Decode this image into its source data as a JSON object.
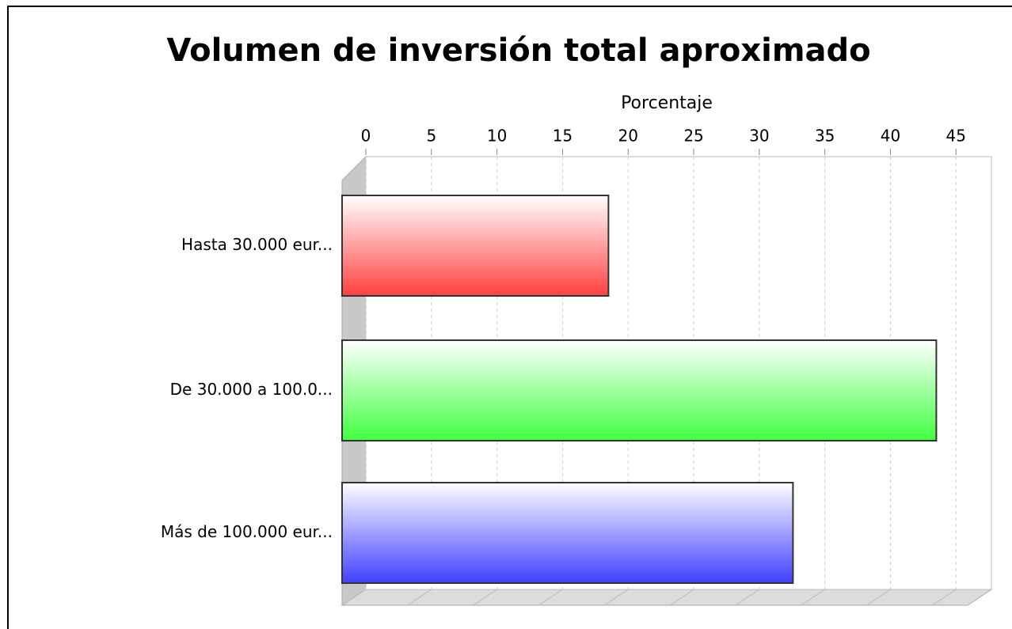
{
  "chart_data": {
    "type": "hbar3d",
    "title": "Volumen de inversión total aproximado",
    "x_label": "Porcentaje",
    "categories": [
      "Hasta 30.000 eur...",
      "De 30.000 a 100.0...",
      "Más de 100.000 eur..."
    ],
    "values": [
      20.31,
      45.31,
      34.38
    ],
    "colors": [
      "#ff4040",
      "#40ff40",
      "#4040ff"
    ],
    "xlim": [
      0,
      47.7
    ],
    "xticks": [
      0,
      5,
      10,
      15,
      20,
      25,
      30,
      35,
      40,
      45
    ],
    "grid": true
  }
}
